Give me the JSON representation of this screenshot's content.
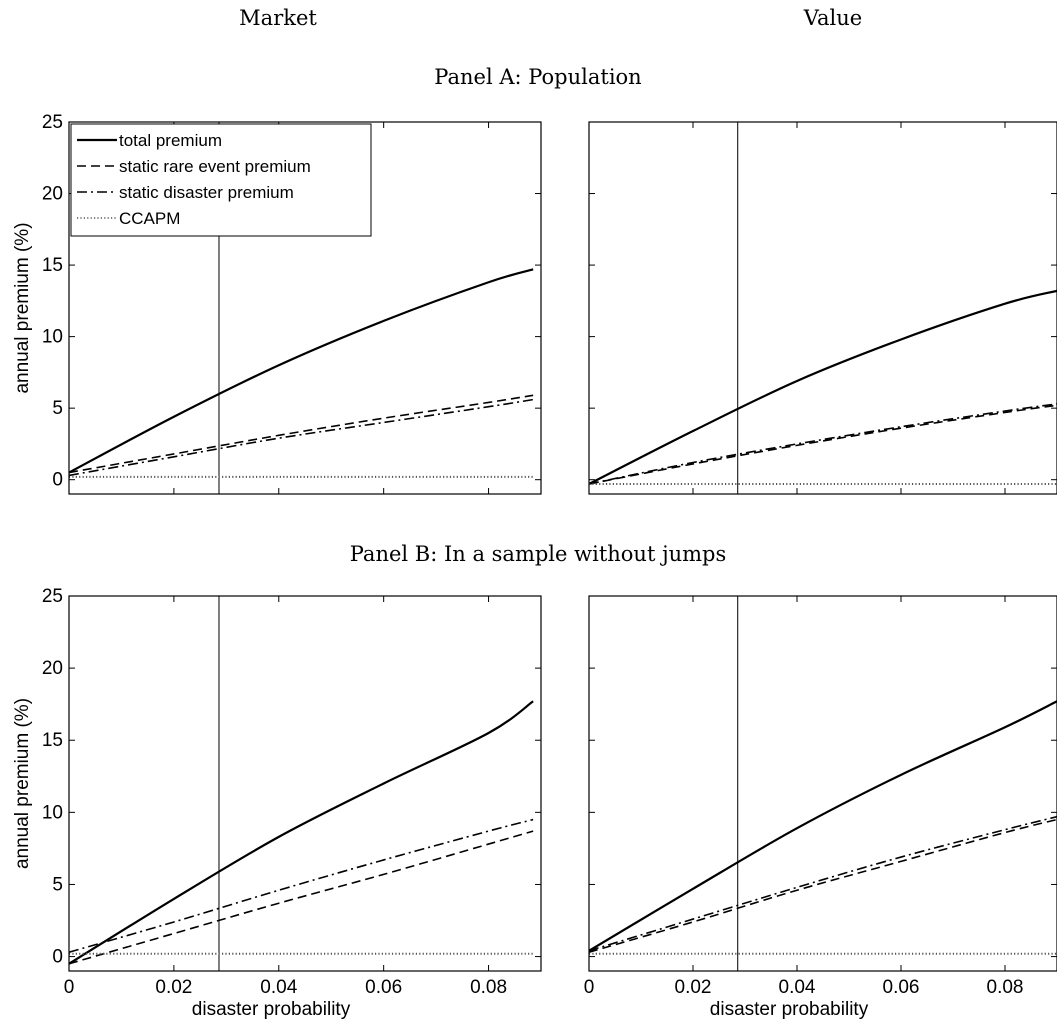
{
  "column_titles": [
    "Market",
    "Value"
  ],
  "panel_titles": [
    "Panel A: Population",
    "Panel B: In a sample without jumps"
  ],
  "legend": {
    "location": "top-left",
    "entries": [
      {
        "label": "total premium",
        "style": "solid"
      },
      {
        "label": "static rare event premium",
        "style": "dashed"
      },
      {
        "label": "static disaster premium",
        "style": "dashdot"
      },
      {
        "label": "CCAPM",
        "style": "dotted"
      }
    ]
  },
  "chart_data": [
    {
      "id": "A-market",
      "type": "line",
      "title": "",
      "xlabel": "",
      "ylabel": "annual premium (%)",
      "xlim": [
        0,
        0.09
      ],
      "ylim": [
        -1,
        25
      ],
      "xticks": [
        0,
        0.02,
        0.04,
        0.06,
        0.08
      ],
      "yticks": [
        0,
        5,
        10,
        15,
        20,
        25
      ],
      "show_x_ticklabels": false,
      "show_y_ticklabels": true,
      "vline_x": 0.0286,
      "x": [
        0,
        0.02,
        0.04,
        0.06,
        0.08,
        0.0885
      ],
      "series": [
        {
          "name": "total premium",
          "style": "solid",
          "values": [
            0.5,
            4.4,
            8.0,
            11.1,
            13.8,
            14.7
          ]
        },
        {
          "name": "static rare event premium",
          "style": "dashed",
          "values": [
            0.5,
            1.8,
            3.1,
            4.3,
            5.4,
            5.9
          ]
        },
        {
          "name": "static disaster premium",
          "style": "dashdot",
          "values": [
            0.3,
            1.6,
            2.9,
            4.0,
            5.1,
            5.6
          ]
        },
        {
          "name": "CCAPM",
          "style": "dotted",
          "values": [
            0.2,
            0.2,
            0.2,
            0.2,
            0.2,
            0.2
          ]
        }
      ]
    },
    {
      "id": "A-value",
      "type": "line",
      "title": "",
      "xlabel": "",
      "ylabel": "",
      "xlim": [
        0,
        0.09
      ],
      "ylim": [
        -1,
        25
      ],
      "xticks": [
        0,
        0.02,
        0.04,
        0.06,
        0.08
      ],
      "yticks": [
        0,
        5,
        10,
        15,
        20,
        25
      ],
      "show_x_ticklabels": false,
      "show_y_ticklabels": false,
      "vline_x": 0.0286,
      "x": [
        0,
        0.02,
        0.04,
        0.06,
        0.08,
        0.09
      ],
      "series": [
        {
          "name": "total premium",
          "style": "solid",
          "values": [
            -0.3,
            3.4,
            6.9,
            9.8,
            12.3,
            13.2
          ]
        },
        {
          "name": "static rare event premium",
          "style": "dashed",
          "values": [
            -0.3,
            1.1,
            2.4,
            3.6,
            4.7,
            5.2
          ]
        },
        {
          "name": "static disaster premium",
          "style": "dashdot",
          "values": [
            -0.3,
            1.2,
            2.5,
            3.7,
            4.8,
            5.3
          ]
        },
        {
          "name": "CCAPM",
          "style": "dotted",
          "values": [
            -0.3,
            -0.3,
            -0.3,
            -0.3,
            -0.3,
            -0.3
          ]
        }
      ]
    },
    {
      "id": "B-market",
      "type": "line",
      "title": "",
      "xlabel": "disaster probability",
      "ylabel": "annual premium (%)",
      "xlim": [
        0,
        0.09
      ],
      "ylim": [
        -1,
        25
      ],
      "xticks": [
        0,
        0.02,
        0.04,
        0.06,
        0.08
      ],
      "yticks": [
        0,
        5,
        10,
        15,
        20,
        25
      ],
      "show_x_ticklabels": true,
      "show_y_ticklabels": true,
      "vline_x": 0.0286,
      "x": [
        0,
        0.02,
        0.04,
        0.06,
        0.08,
        0.0885
      ],
      "series": [
        {
          "name": "total premium",
          "style": "solid",
          "values": [
            -0.5,
            4.0,
            8.3,
            12.0,
            15.5,
            17.7
          ]
        },
        {
          "name": "static rare event premium",
          "style": "dashed",
          "values": [
            -0.5,
            1.6,
            3.7,
            5.7,
            7.8,
            8.7
          ]
        },
        {
          "name": "static disaster premium",
          "style": "dashdot",
          "values": [
            0.3,
            2.4,
            4.6,
            6.7,
            8.7,
            9.5
          ]
        },
        {
          "name": "CCAPM",
          "style": "dotted",
          "values": [
            0.2,
            0.2,
            0.2,
            0.2,
            0.2,
            0.2
          ]
        }
      ]
    },
    {
      "id": "B-value",
      "type": "line",
      "title": "",
      "xlabel": "disaster probability",
      "ylabel": "",
      "xlim": [
        0,
        0.09
      ],
      "ylim": [
        -1,
        25
      ],
      "xticks": [
        0,
        0.02,
        0.04,
        0.06,
        0.08
      ],
      "yticks": [
        0,
        5,
        10,
        15,
        20,
        25
      ],
      "show_x_ticklabels": true,
      "show_y_ticklabels": false,
      "vline_x": 0.0286,
      "x": [
        0,
        0.02,
        0.04,
        0.06,
        0.08,
        0.09
      ],
      "series": [
        {
          "name": "total premium",
          "style": "solid",
          "values": [
            0.4,
            4.7,
            8.9,
            12.6,
            15.9,
            17.7
          ]
        },
        {
          "name": "static rare event premium",
          "style": "dashed",
          "values": [
            0.3,
            2.4,
            4.6,
            6.6,
            8.6,
            9.5
          ]
        },
        {
          "name": "static disaster premium",
          "style": "dashdot",
          "values": [
            0.4,
            2.6,
            4.8,
            6.9,
            8.8,
            9.7
          ]
        },
        {
          "name": "CCAPM",
          "style": "dotted",
          "values": [
            0.2,
            0.2,
            0.2,
            0.2,
            0.2,
            0.2
          ]
        }
      ]
    }
  ]
}
